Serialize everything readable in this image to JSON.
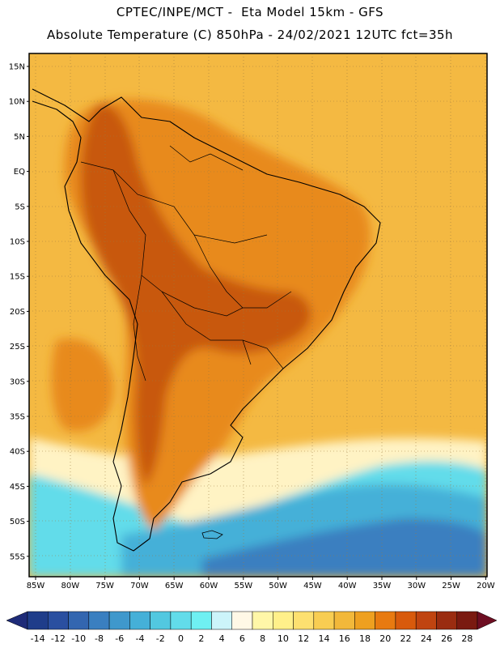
{
  "header": {
    "line1": "CPTEC/INPE/MCT -  Eta Model 15km - GFS",
    "line2": "Absolute Temperature (C) 850hPa - 24/02/2021 12UTC fct=35h"
  },
  "axes": {
    "lat_labels": [
      "15N",
      "10N",
      "5N",
      "EQ",
      "5S",
      "10S",
      "15S",
      "20S",
      "25S",
      "30S",
      "35S",
      "40S",
      "45S",
      "50S",
      "55S"
    ],
    "lon_labels": [
      "85W",
      "80W",
      "75W",
      "70W",
      "65W",
      "60W",
      "55W",
      "50W",
      "45W",
      "40W",
      "35W",
      "30W",
      "25W",
      "20W"
    ]
  },
  "colorbar": {
    "labels": [
      "-14",
      "-12",
      "-10",
      "-8",
      "-6",
      "-4",
      "-2",
      "0",
      "2",
      "4",
      "6",
      "8",
      "10",
      "12",
      "14",
      "16",
      "18",
      "20",
      "22",
      "24",
      "26",
      "28"
    ],
    "colors": [
      "#1f3d8a",
      "#2a4fa0",
      "#3366b0",
      "#3a7fc0",
      "#3f98cc",
      "#45b0d8",
      "#52c8e0",
      "#62dcea",
      "#6ff0f2",
      "#ccf4fa",
      "#fff8e6",
      "#fff7a8",
      "#fff08a",
      "#fde070",
      "#f8cd52",
      "#f2b83a",
      "#eea020",
      "#e87a10",
      "#d85a0c",
      "#c04410",
      "#9a2c10",
      "#7a1a10"
    ],
    "low_arrow_color": "#1e2b78",
    "high_arrow_color": "#6e0e22"
  },
  "colors": {
    "ocean_north": "#f4b942",
    "ocean_mid": "#f5c248",
    "land_warm": "#e88a1e",
    "land_hot": "#c8580c",
    "cold": "#52c8e0",
    "colder": "#3f98cc",
    "coldest": "#2f70b8",
    "pale": "#fff3c4"
  }
}
